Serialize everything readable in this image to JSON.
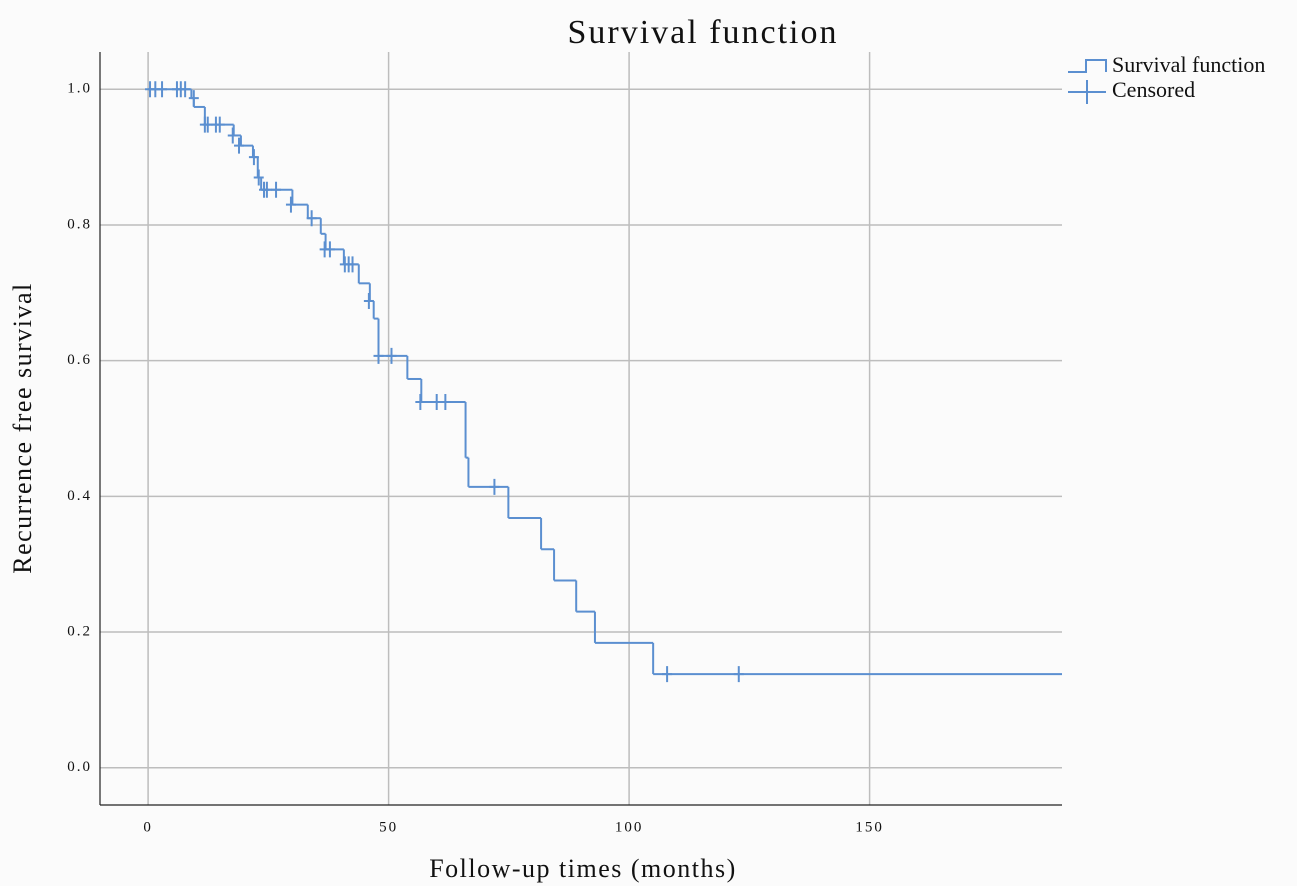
{
  "chart_data": {
    "type": "survival",
    "title": "Survival function",
    "x_label": "Follow-up times (months)",
    "y_label": "Recurrence free survival",
    "xlim": [
      -10,
      190
    ],
    "xticks": [
      0,
      50,
      100,
      150
    ],
    "ylim": [
      -0.055,
      1.055
    ],
    "yticks": [
      {
        "value": 0,
        "label": "0.0"
      },
      0.2,
      0.4,
      0.6,
      0.8,
      {
        "value": 1,
        "label": "1.0"
      }
    ],
    "grid": true,
    "legend": "top-right",
    "series": [
      {
        "name": "Survival function",
        "color": "#5b8fd0",
        "x": [
          0,
          9,
          9.5,
          11.8,
          17.8,
          19.3,
          21.8,
          22.8,
          23.5,
          30,
          33.2,
          35.9,
          36.9,
          40.7,
          43.8,
          46.1,
          46.9,
          47.9,
          53.9,
          56.8,
          66,
          66.6,
          74.9,
          81.7,
          84.4,
          89,
          92.9,
          105,
          190
        ],
        "values": [
          1.0,
          0.987,
          0.974,
          0.948,
          0.932,
          0.917,
          0.9,
          0.87,
          0.852,
          0.83,
          0.81,
          0.787,
          0.764,
          0.742,
          0.714,
          0.688,
          0.662,
          0.607,
          0.573,
          0.539,
          0.457,
          0.414,
          0.368,
          0.322,
          0.276,
          0.23,
          0.184,
          0.138,
          0.138
        ]
      },
      {
        "name": "Censored",
        "color": "#5b8fd0",
        "x": [
          0.4,
          1.5,
          2.9,
          6,
          6.8,
          7.7,
          9.5,
          11.8,
          12.4,
          14.1,
          14.9,
          17.6,
          18.9,
          22,
          23,
          24.1,
          24.7,
          26.6,
          29.7,
          34,
          36.7,
          37.8,
          40.9,
          41.7,
          42.5,
          45.9,
          47.9,
          50.6,
          56.6,
          60,
          61.8,
          72,
          107.9,
          122.8
        ],
        "values": [
          1.0,
          1.0,
          1.0,
          1.0,
          1.0,
          1.0,
          0.987,
          0.948,
          0.948,
          0.948,
          0.948,
          0.932,
          0.917,
          0.9,
          0.87,
          0.852,
          0.852,
          0.852,
          0.83,
          0.81,
          0.764,
          0.764,
          0.742,
          0.742,
          0.742,
          0.688,
          0.607,
          0.607,
          0.539,
          0.539,
          0.539,
          0.414,
          0.138,
          0.138
        ]
      }
    ]
  }
}
